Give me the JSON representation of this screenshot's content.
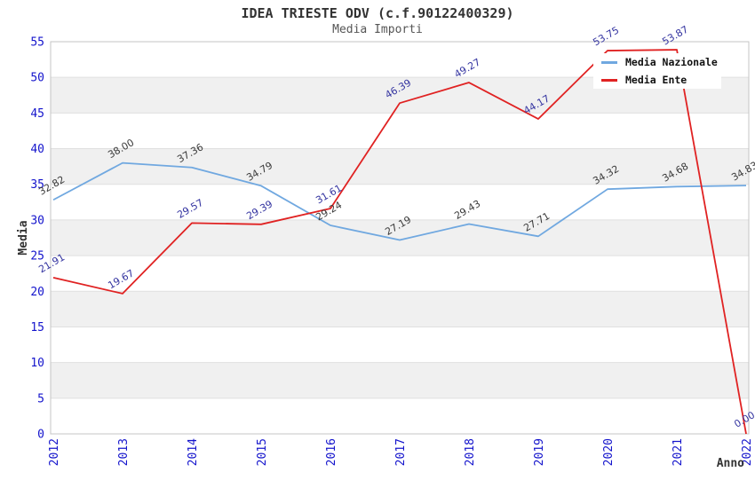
{
  "header": {
    "title": "IDEA TRIESTE ODV (c.f.90122400329)",
    "subtitle": "Media Importi"
  },
  "chart_data": {
    "type": "line",
    "title": "IDEA TRIESTE ODV (c.f.90122400329)",
    "subtitle": "Media Importi",
    "xlabel": "Anno",
    "ylabel": "Media",
    "categories": [
      "2012",
      "2013",
      "2014",
      "2015",
      "2016",
      "2017",
      "2018",
      "2019",
      "2020",
      "2021",
      "2022"
    ],
    "y_ticks": [
      0,
      5,
      10,
      15,
      20,
      25,
      30,
      35,
      40,
      45,
      50,
      55
    ],
    "ylim": [
      0,
      55
    ],
    "grid": "horizontal gridlines every 5 units with alternating gray/white bands",
    "legend_position": "top-right",
    "value_label_format": "2 decimals, rotated -30deg above each point",
    "series": [
      {
        "name": "Media Nazionale",
        "color": "#70A8E0",
        "label_color": "#3A3A3A",
        "values": [
          32.82,
          38.0,
          37.36,
          34.79,
          29.24,
          27.19,
          29.43,
          27.71,
          34.32,
          34.68,
          34.83
        ]
      },
      {
        "name": "Media Ente",
        "color": "#E02222",
        "label_color": "#3333A0",
        "values": [
          21.91,
          19.67,
          29.57,
          29.39,
          31.61,
          46.39,
          49.27,
          44.17,
          53.75,
          53.87,
          0.0
        ]
      }
    ]
  },
  "colors": {
    "background": "#FFFFFF",
    "band_gray": "#F0F0F0",
    "gridline": "#DFDFDF",
    "plot_border": "#C4C4C4",
    "tick_label": "#1414CC",
    "title_text": "#333333",
    "legend_text": "#111111"
  }
}
